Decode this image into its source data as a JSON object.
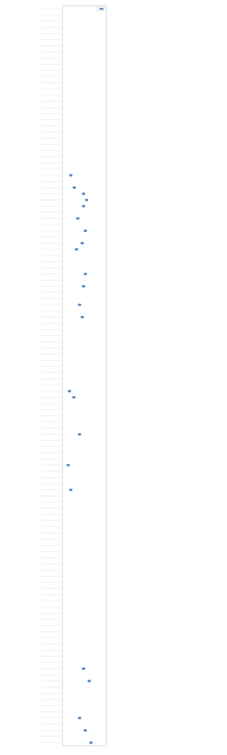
{
  "chart_data": {
    "type": "dot",
    "categories": [
      null,
      null,
      null,
      null,
      null,
      null,
      null,
      null,
      null,
      null,
      null,
      null,
      null,
      null,
      null,
      null,
      null,
      null,
      null,
      null,
      null,
      null,
      null,
      null,
      null,
      null,
      null,
      null,
      null,
      null,
      null,
      null,
      null,
      null,
      null,
      null,
      null,
      null,
      null,
      null,
      null,
      null,
      null,
      null,
      null,
      null,
      null,
      null,
      null,
      null,
      null,
      null,
      null,
      null,
      null,
      null,
      null,
      null,
      null,
      null,
      null,
      null,
      null,
      null,
      null,
      null,
      null,
      null,
      null,
      null,
      null,
      null,
      null,
      null,
      null,
      null,
      null,
      null,
      null,
      null,
      null,
      null,
      null,
      null,
      null,
      null,
      null,
      null,
      null,
      null,
      null,
      null,
      null,
      null,
      null,
      null,
      null,
      null,
      null,
      null,
      null,
      null,
      null,
      null,
      null,
      null,
      null,
      null,
      null,
      null,
      null,
      null,
      null,
      null,
      null,
      null,
      null,
      null,
      null,
      null
    ],
    "values": [
      null,
      null,
      null,
      null,
      null,
      null,
      null,
      null,
      null,
      null,
      null,
      null,
      null,
      null,
      null,
      null,
      null,
      null,
      null,
      null,
      null,
      null,
      null,
      null,
      null,
      null,
      null,
      0.19,
      null,
      0.27,
      0.48,
      0.55,
      0.48,
      null,
      0.35,
      null,
      0.52,
      null,
      0.45,
      0.32,
      null,
      null,
      null,
      0.52,
      null,
      0.48,
      null,
      null,
      0.39,
      null,
      0.45,
      null,
      null,
      null,
      null,
      null,
      null,
      null,
      null,
      null,
      null,
      null,
      0.16,
      0.26,
      null,
      null,
      null,
      null,
      null,
      0.39,
      null,
      null,
      null,
      null,
      0.13,
      null,
      null,
      null,
      0.19,
      null,
      null,
      null,
      null,
      null,
      null,
      null,
      null,
      null,
      null,
      null,
      null,
      null,
      null,
      null,
      null,
      null,
      null,
      null,
      null,
      null,
      null,
      null,
      null,
      null,
      null,
      null,
      null,
      0.48,
      null,
      0.61,
      null,
      null,
      null,
      null,
      null,
      0.39,
      null,
      0.52,
      null,
      0.65
    ],
    "color": "#3a75b8",
    "xlim": [
      0,
      1
    ]
  }
}
